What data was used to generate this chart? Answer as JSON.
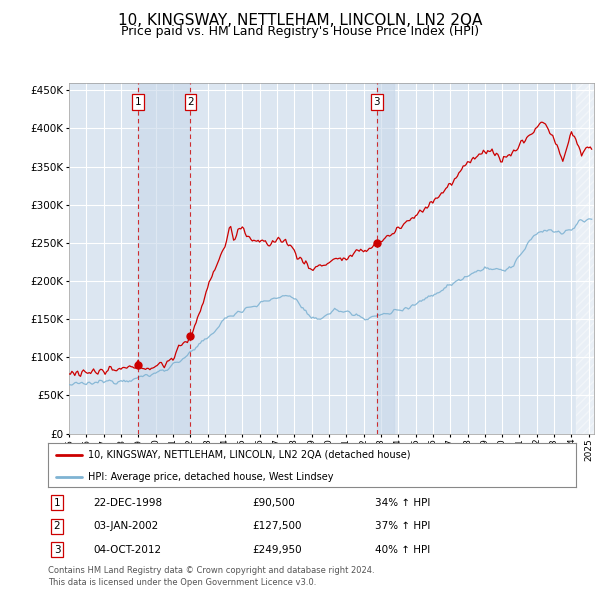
{
  "title": "10, KINGSWAY, NETTLEHAM, LINCOLN, LN2 2QA",
  "subtitle": "Price paid vs. HM Land Registry's House Price Index (HPI)",
  "title_fontsize": 11,
  "subtitle_fontsize": 9,
  "plot_bg_color": "#dce6f1",
  "red_line_color": "#cc0000",
  "blue_line_color": "#7fb3d3",
  "grid_color": "#ffffff",
  "vline_color": "#cc0000",
  "shade_color": "#c8d8ea",
  "ylim": [
    0,
    460000
  ],
  "yticks": [
    0,
    50000,
    100000,
    150000,
    200000,
    250000,
    300000,
    350000,
    400000,
    450000
  ],
  "transactions": [
    {
      "price": 90500,
      "label": "1",
      "x": 1998.97
    },
    {
      "price": 127500,
      "label": "2",
      "x": 2002.01
    },
    {
      "price": 249950,
      "label": "3",
      "x": 2012.76
    }
  ],
  "legend_entries": [
    "10, KINGSWAY, NETTLEHAM, LINCOLN, LN2 2QA (detached house)",
    "HPI: Average price, detached house, West Lindsey"
  ],
  "table_rows": [
    [
      "1",
      "22-DEC-1998",
      "£90,500",
      "34% ↑ HPI"
    ],
    [
      "2",
      "03-JAN-2002",
      "£127,500",
      "37% ↑ HPI"
    ],
    [
      "3",
      "04-OCT-2012",
      "£249,950",
      "40% ↑ HPI"
    ]
  ],
  "footer_text": "Contains HM Land Registry data © Crown copyright and database right 2024.\nThis data is licensed under the Open Government Licence v3.0.",
  "xmin": 1995.0,
  "xmax": 2025.3,
  "hatch_start": 2024.25
}
